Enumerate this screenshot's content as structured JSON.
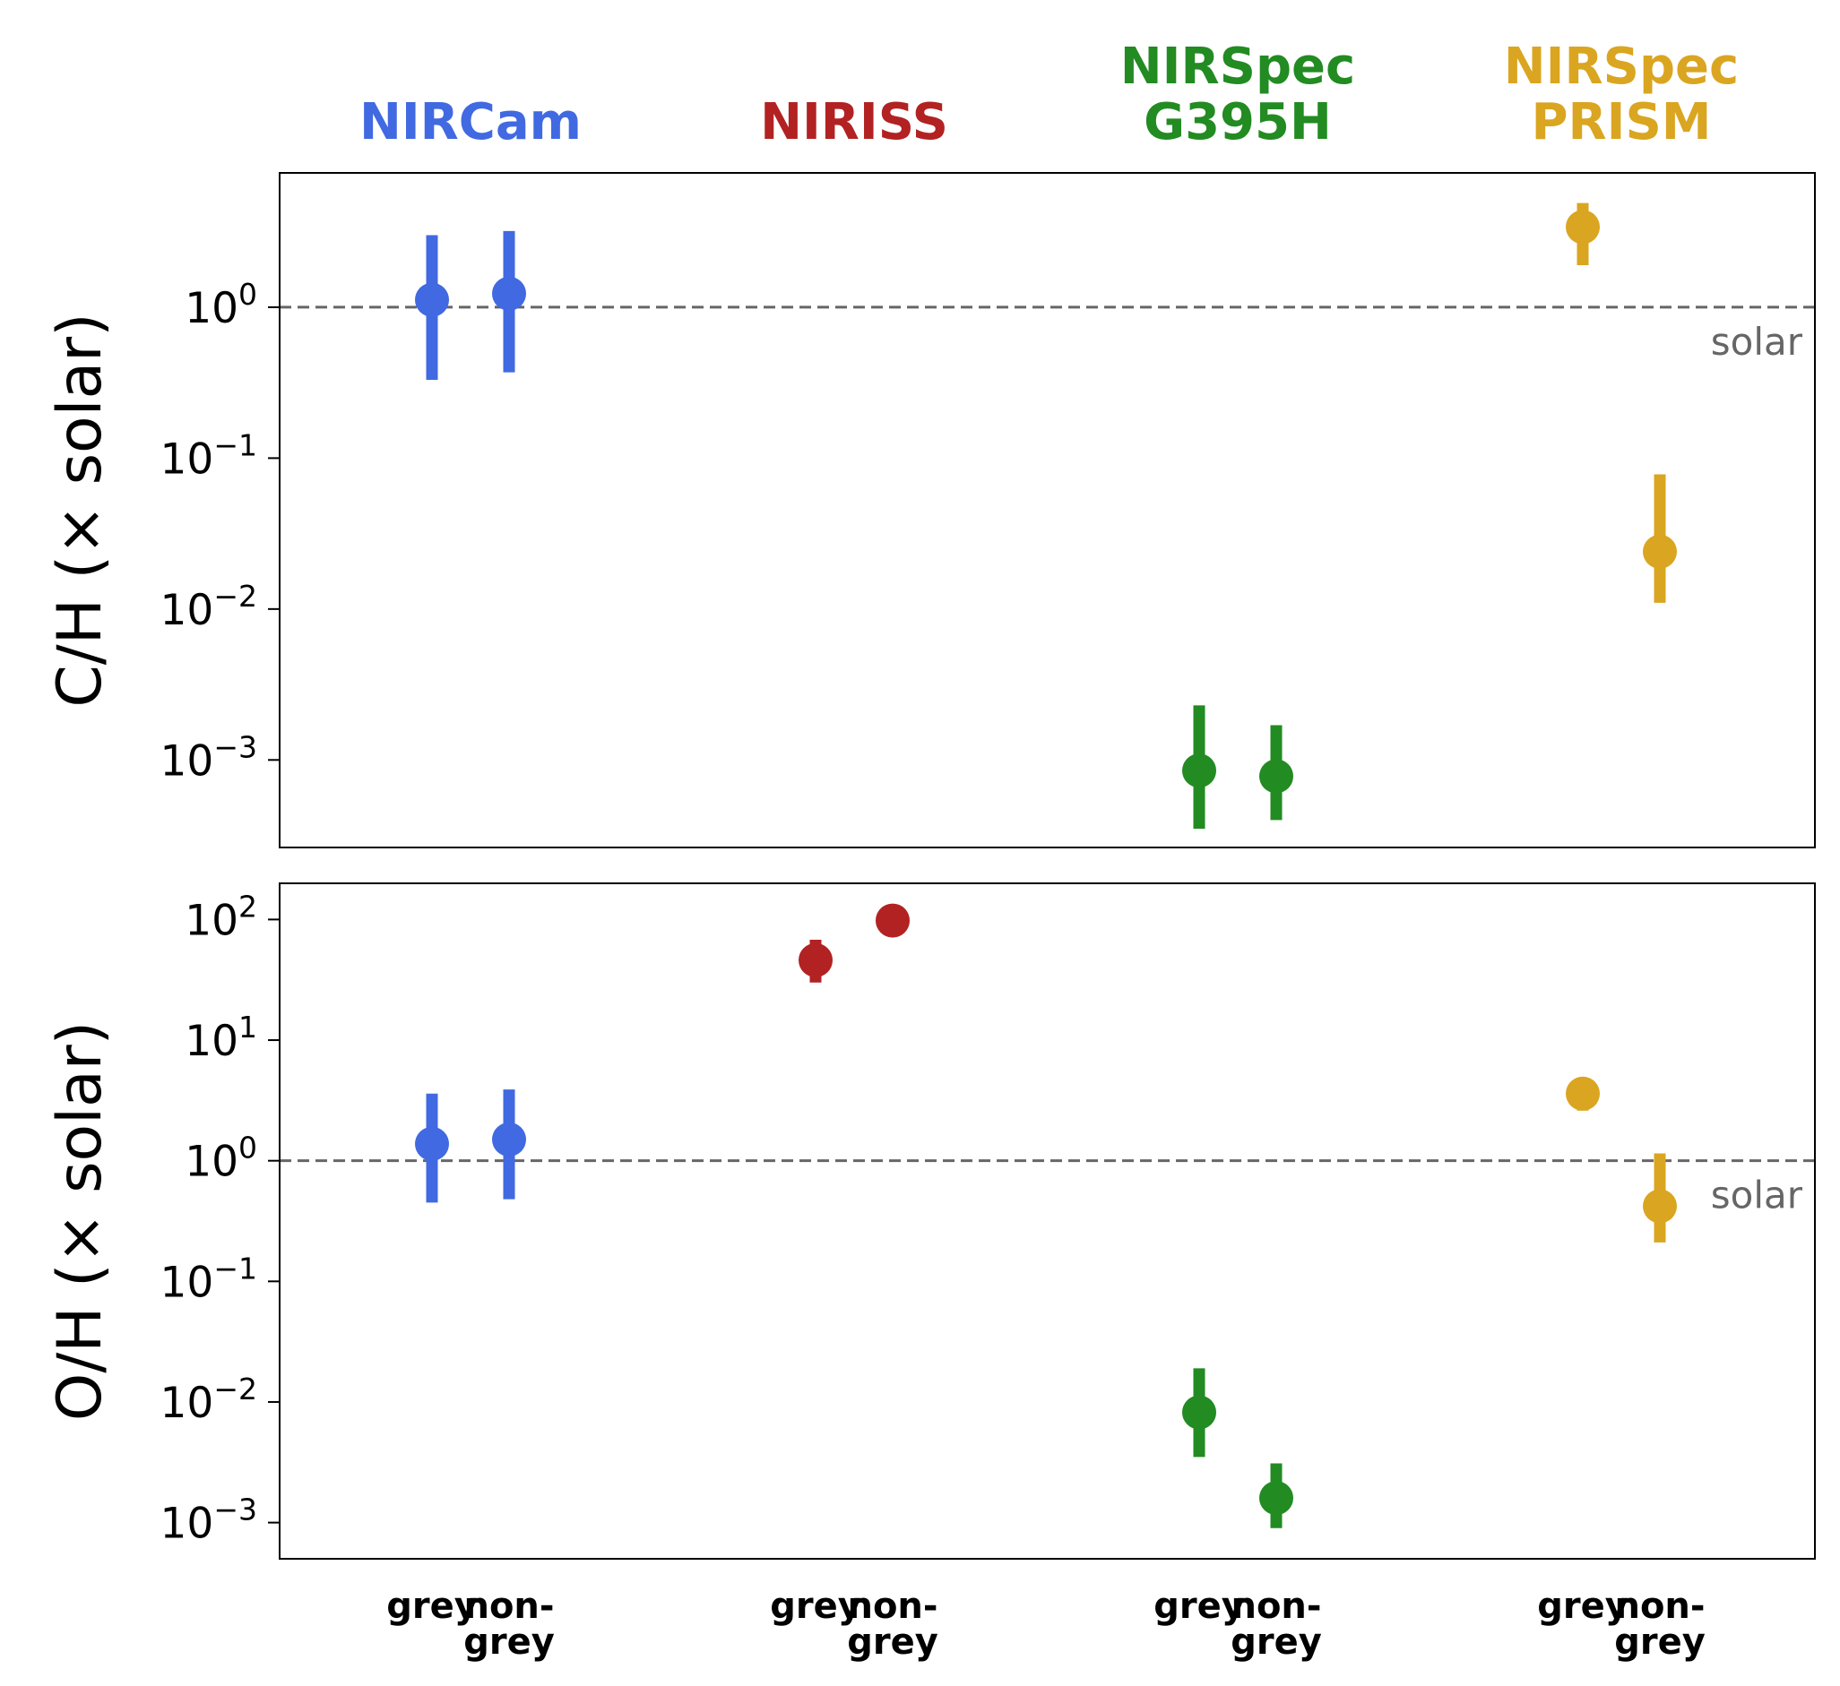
{
  "chart_data": {
    "type": "scatter",
    "instruments": [
      {
        "name": "NIRCam",
        "lines": [
          "NIRCam"
        ],
        "color": "#4169e1"
      },
      {
        "name": "NIRISS",
        "lines": [
          "NIRISS"
        ],
        "color": "#b22222"
      },
      {
        "name": "NIRSpec G395H",
        "lines": [
          "NIRSpec",
          "G395H"
        ],
        "color": "#228b22"
      },
      {
        "name": "NIRSpec PRISM",
        "lines": [
          "NIRSpec",
          "PRISM"
        ],
        "color": "#daa520"
      }
    ],
    "categories": [
      {
        "instrument": 0,
        "lines": [
          "grey"
        ]
      },
      {
        "instrument": 0,
        "lines": [
          "non-",
          "grey"
        ]
      },
      {
        "instrument": 1,
        "lines": [
          "grey"
        ]
      },
      {
        "instrument": 1,
        "lines": [
          "non-",
          "grey"
        ]
      },
      {
        "instrument": 2,
        "lines": [
          "grey"
        ]
      },
      {
        "instrument": 2,
        "lines": [
          "non-",
          "grey"
        ]
      },
      {
        "instrument": 3,
        "lines": [
          "grey"
        ]
      },
      {
        "instrument": 3,
        "lines": [
          "non-",
          "grey"
        ]
      }
    ],
    "solar_label": "solar",
    "panels": [
      {
        "name": "CH",
        "ylabel": "C/H (× solar)",
        "yscale": "log",
        "ylim_log10": [
          -3.58,
          0.89
        ],
        "ticks": [
          {
            "exp": 0,
            "base": "10",
            "sup": "0"
          },
          {
            "exp": -1,
            "base": "10",
            "sup": "−1"
          },
          {
            "exp": -2,
            "base": "10",
            "sup": "−2"
          },
          {
            "exp": -3,
            "base": "10",
            "sup": "−3"
          }
        ],
        "reference_line": 1.0,
        "points": [
          {
            "category": 0,
            "value": 1.12,
            "low": 0.33,
            "high": 3.0
          },
          {
            "category": 1,
            "value": 1.23,
            "low": 0.37,
            "high": 3.2
          },
          {
            "category": 4,
            "value": 0.00085,
            "low": 0.00035,
            "high": 0.0023
          },
          {
            "category": 5,
            "value": 0.00078,
            "low": 0.0004,
            "high": 0.0017
          },
          {
            "category": 6,
            "value": 3.4,
            "low": 1.9,
            "high": 4.9
          },
          {
            "category": 7,
            "value": 0.024,
            "low": 0.011,
            "high": 0.078
          }
        ]
      },
      {
        "name": "OH",
        "ylabel": "O/H (× solar)",
        "yscale": "log",
        "ylim_log10": [
          -3.3,
          2.3
        ],
        "ticks": [
          {
            "exp": 2,
            "base": "10",
            "sup": "2"
          },
          {
            "exp": 1,
            "base": "10",
            "sup": "1"
          },
          {
            "exp": 0,
            "base": "10",
            "sup": "0"
          },
          {
            "exp": -1,
            "base": "10",
            "sup": "−1"
          },
          {
            "exp": -2,
            "base": "10",
            "sup": "−2"
          },
          {
            "exp": -3,
            "base": "10",
            "sup": "−3"
          }
        ],
        "reference_line": 1.0,
        "points": [
          {
            "category": 0,
            "value": 1.38,
            "low": 0.45,
            "high": 3.6
          },
          {
            "category": 1,
            "value": 1.5,
            "low": 0.48,
            "high": 3.9
          },
          {
            "category": 2,
            "value": 46,
            "low": 30,
            "high": 68
          },
          {
            "category": 3,
            "value": 98,
            "low": 98,
            "high": 98
          },
          {
            "category": 4,
            "value": 0.0082,
            "low": 0.0035,
            "high": 0.019
          },
          {
            "category": 5,
            "value": 0.0016,
            "low": 0.0009,
            "high": 0.0031
          },
          {
            "category": 6,
            "value": 3.6,
            "low": 2.6,
            "high": 3.6
          },
          {
            "category": 7,
            "value": 0.42,
            "low": 0.21,
            "high": 1.15
          }
        ]
      }
    ]
  }
}
